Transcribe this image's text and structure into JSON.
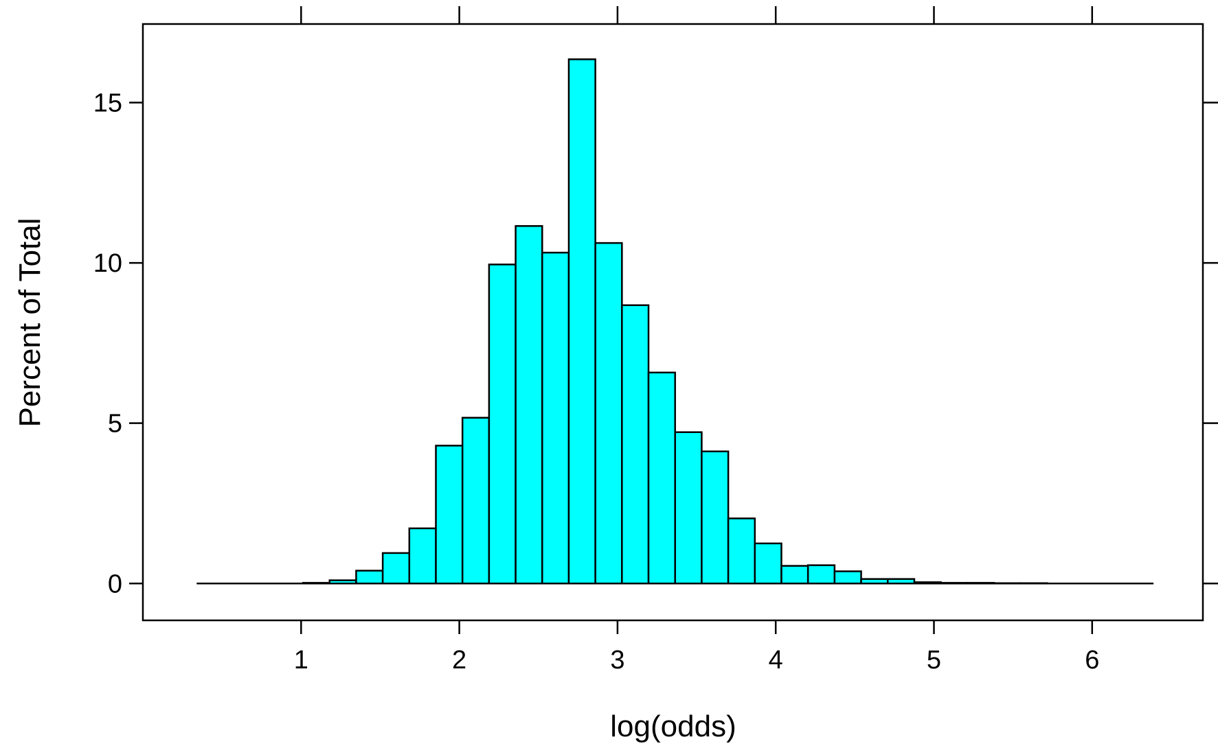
{
  "chart_data": {
    "type": "bar",
    "xlabel": "log(odds)",
    "ylabel": "Percent of Total",
    "xlim": [
      0.0,
      6.7
    ],
    "ylim": [
      -1.15,
      17.45
    ],
    "x_ticks": [
      1,
      2,
      3,
      4,
      5,
      6
    ],
    "x_tick_labels": [
      "1",
      "2",
      "3",
      "4",
      "5",
      "6"
    ],
    "y_ticks": [
      0,
      5,
      10,
      15
    ],
    "y_tick_labels": [
      "0",
      "5",
      "10",
      "15"
    ],
    "bar_color": "#00ffff",
    "bin_start": 0.34,
    "bin_width": 0.168,
    "values": [
      0,
      0,
      0,
      0,
      0.02,
      0.1,
      0.4,
      0.95,
      1.72,
      4.3,
      5.17,
      9.95,
      11.15,
      10.32,
      16.35,
      10.62,
      8.68,
      6.58,
      4.72,
      4.12,
      2.03,
      1.25,
      0.55,
      0.57,
      0.38,
      0.14,
      0.14,
      0.04,
      0.02,
      0.02,
      0.01,
      0.01,
      0,
      0,
      0,
      0
    ]
  }
}
